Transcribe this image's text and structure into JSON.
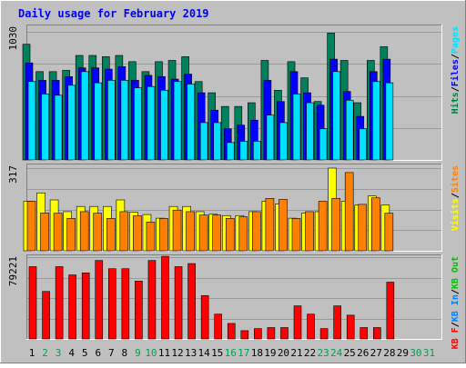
{
  "chart_data": {
    "type": "bar",
    "title": "Daily usage for February 2019",
    "x": [
      "1",
      "2",
      "3",
      "4",
      "5",
      "6",
      "7",
      "8",
      "9",
      "10",
      "11",
      "12",
      "13",
      "14",
      "15",
      "16",
      "17",
      "18",
      "19",
      "20",
      "21",
      "22",
      "23",
      "24",
      "25",
      "26",
      "27",
      "28",
      "29",
      "30",
      "31"
    ],
    "weekend_days": [
      "2",
      "3",
      "9",
      "10",
      "16",
      "17",
      "23",
      "24",
      "30",
      "31"
    ],
    "grid": true,
    "panels": [
      {
        "id": "hits",
        "ymax": 1030,
        "ymax_label": "1030",
        "side_labels": [
          {
            "text": "Hits",
            "color": "#008040"
          },
          {
            "text": "Files",
            "color": "#0000ff"
          },
          {
            "text": "Pages",
            "color": "#00e0ff"
          }
        ],
        "series": [
          {
            "name": "Hits",
            "color": "#00805c",
            "values": [
              930,
              710,
              710,
              720,
              840,
              840,
              830,
              840,
              790,
              710,
              790,
              800,
              830,
              630,
              540,
              430,
              430,
              460,
              800,
              560,
              790,
              660,
              470,
              1020,
              800,
              460,
              800,
              910
            ]
          },
          {
            "name": "Files",
            "color": "#0000ff",
            "values": [
              780,
              640,
              640,
              670,
              740,
              740,
              730,
              750,
              640,
              680,
              670,
              650,
              690,
              540,
              400,
              250,
              280,
              320,
              640,
              470,
              710,
              540,
              440,
              810,
              550,
              350,
              710,
              810
            ]
          },
          {
            "name": "Pages",
            "color": "#00e0ff",
            "values": [
              630,
              530,
              520,
              600,
              710,
              620,
              640,
              640,
              580,
              590,
              560,
              630,
              610,
              300,
              300,
              140,
              150,
              150,
              360,
              300,
              530,
              460,
              250,
              710,
              480,
              250,
              630,
              620
            ]
          }
        ]
      },
      {
        "id": "visits",
        "ymax": 317,
        "ymax_label": "317",
        "side_labels": [
          {
            "text": "Visits",
            "color": "#ffff00"
          },
          {
            "text": "Sites",
            "color": "#ff8000"
          }
        ],
        "series": [
          {
            "name": "Visits",
            "color": "#ffff00",
            "values": [
              190,
              222,
              195,
              150,
              170,
              170,
              170,
              195,
              148,
              139,
              125,
              170,
              170,
              150,
              140,
              135,
              135,
              150,
              190,
              179,
              125,
              145,
              150,
              317,
              190,
              175,
              210,
              175
            ]
          },
          {
            "name": "Sites",
            "color": "#ff8000",
            "values": [
              190,
              145,
              144,
              124,
              150,
              144,
              124,
              150,
              134,
              110,
              124,
              156,
              150,
              137,
              137,
              124,
              130,
              150,
              201,
              197,
              124,
              150,
              190,
              201,
              300,
              178,
              203,
              144
            ]
          }
        ]
      },
      {
        "id": "kbytes",
        "ymax": 79221,
        "ymax_label": "79221",
        "side_labels": [
          {
            "text": "KB F",
            "color": "#ff0000"
          },
          {
            "text": "KB In",
            "color": "#0080ff"
          },
          {
            "text": "KB Out",
            "color": "#00c000"
          }
        ],
        "series": [
          {
            "name": "KB F",
            "color": "#ff0000",
            "values": [
              70000,
              46000,
              70000,
              62000,
              64000,
              76000,
              68000,
              68000,
              56000,
              76000,
              80000,
              70000,
              73000,
              42000,
              24000,
              15000,
              8000,
              10000,
              11000,
              11000,
              32000,
              24000,
              10000,
              32000,
              23000,
              11000,
              11000,
              55000
            ]
          }
        ]
      }
    ]
  },
  "colors": {
    "frame": "#c0c0c0",
    "plot_bg": "#c0c0c0",
    "bevel_light": "#ffffff",
    "bevel_dark": "#808080",
    "title": "#0000ff",
    "day_normal": "#000000",
    "day_weekend": "#00a050",
    "gridline": "#9a9a9a"
  }
}
